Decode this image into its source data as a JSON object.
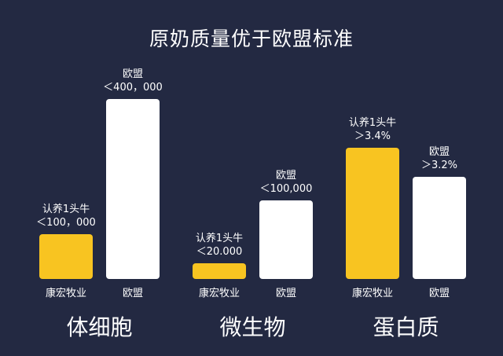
{
  "chart_data": {
    "type": "bar",
    "title": "原奶质量优于欧盟标准",
    "colors": {
      "background": "#232942",
      "kanghong": "#F8C421",
      "eu": "#FFFFFF"
    },
    "groups": [
      {
        "name": "体细胞",
        "bars": [
          {
            "category": "康宏牧业",
            "value": 100000,
            "series_label": "认养1头牛",
            "value_label": "＜100，000",
            "color": "#F8C421"
          },
          {
            "category": "欧盟",
            "value": 400000,
            "series_label": "欧盟",
            "value_label": "＜400，000",
            "color": "#FFFFFF"
          }
        ]
      },
      {
        "name": "微生物",
        "bars": [
          {
            "category": "康宏牧业",
            "value": 20000,
            "series_label": "认养1头牛",
            "value_label": "＜20.000",
            "color": "#F8C421"
          },
          {
            "category": "欧盟",
            "value": 100000,
            "series_label": "欧盟",
            "value_label": "＜100,000",
            "color": "#FFFFFF"
          }
        ]
      },
      {
        "name": "蛋白质",
        "bars": [
          {
            "category": "康宏牧业",
            "value": 3.4,
            "series_label": "认养1头牛",
            "value_label": "＞3.4%",
            "color": "#F8C421"
          },
          {
            "category": "欧盟",
            "value": 3.2,
            "series_label": "欧盟",
            "value_label": "＞3.2%",
            "color": "#FFFFFF"
          }
        ]
      }
    ]
  }
}
